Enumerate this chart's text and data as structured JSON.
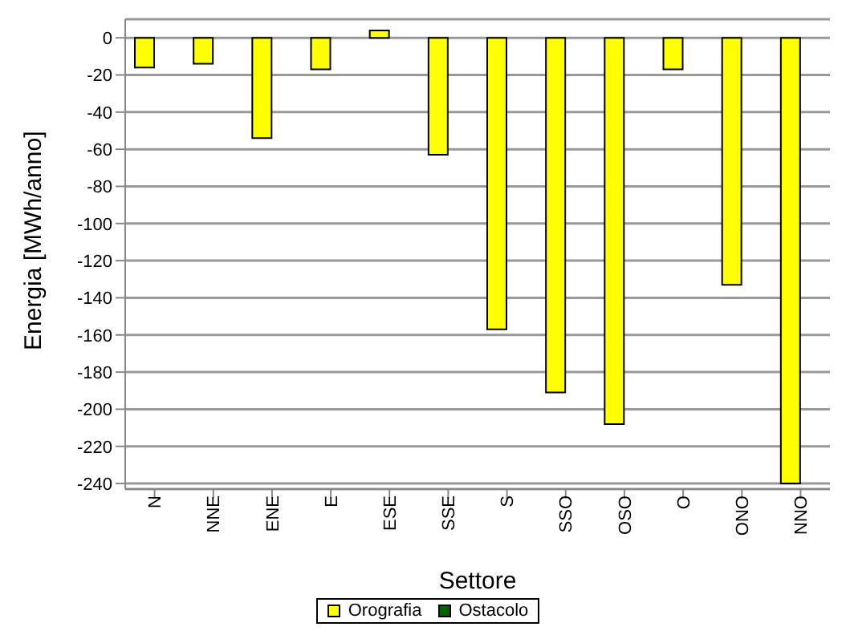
{
  "chart_data": {
    "type": "bar",
    "xlabel": "Settore",
    "ylabel": "Energia [MWh/anno]",
    "categories": [
      "N",
      "NNE",
      "ENE",
      "E",
      "ESE",
      "SSE",
      "S",
      "SSO",
      "OSO",
      "O",
      "ONO",
      "NNO"
    ],
    "series": [
      {
        "name": "Orografia",
        "color": "#ffff00",
        "values": [
          -16,
          -14,
          -54,
          -17,
          4,
          -63,
          -157,
          -191,
          -208,
          -17,
          -133,
          -240
        ]
      },
      {
        "name": "Ostacolo",
        "color": "#006400",
        "values": [
          0,
          0,
          0,
          0,
          0,
          0,
          0,
          0,
          0,
          0,
          0,
          0
        ]
      }
    ],
    "ylim": [
      -243,
      10
    ],
    "yticks": [
      0,
      -20,
      -40,
      -60,
      -80,
      -100,
      -120,
      -140,
      -160,
      -180,
      -200,
      -220,
      -240
    ],
    "grid": "y",
    "legend": "bottom"
  }
}
